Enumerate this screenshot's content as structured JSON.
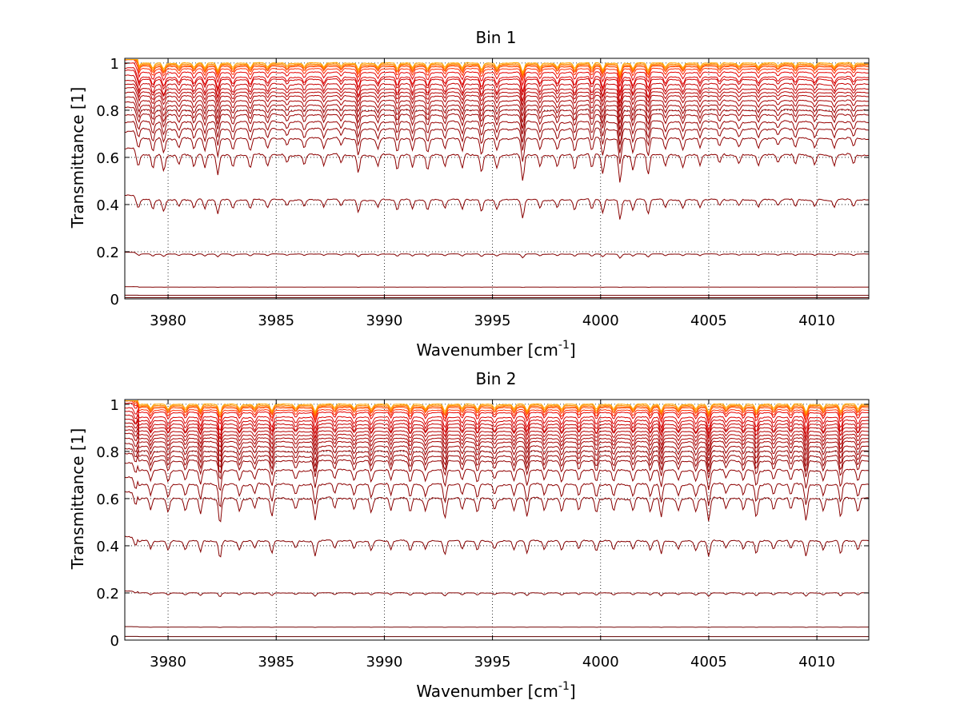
{
  "chart_data": [
    {
      "type": "line",
      "title": "Bin 1",
      "xlabel": "Wavenumber [cm",
      "xlabel_sup": "-1",
      "xlabel_end": "]",
      "ylabel": "Transmittance [1]",
      "xlim": [
        3978,
        4012.4
      ],
      "ylim": [
        0,
        1.02
      ],
      "xticks": [
        3980,
        3985,
        3990,
        3995,
        4000,
        4005,
        4010
      ],
      "xtick_labels": [
        "3980",
        "3985",
        "3990",
        "3995",
        "4000",
        "4005",
        "4010"
      ],
      "yticks": [
        0,
        0.2,
        0.4,
        0.6,
        0.8,
        1
      ],
      "ytick_labels": [
        "0",
        "0.2",
        "0.4",
        "0.6",
        "0.8",
        "1"
      ],
      "grid": true,
      "series_baselines": [
        1.0,
        0.995,
        0.99,
        0.985,
        0.975,
        0.96,
        0.94,
        0.93,
        0.91,
        0.89,
        0.875,
        0.86,
        0.84,
        0.82,
        0.8,
        0.78,
        0.75,
        0.72,
        0.68,
        0.61,
        0.42,
        0.19,
        0.05,
        0.015,
        0.005
      ],
      "series_colors": [
        "#ffa500",
        "#ff8c00",
        "#ff6a00",
        "#ff4500",
        "#ff2a00",
        "#e60000",
        "#dd0000",
        "#d00000",
        "#c80000",
        "#c00000",
        "#b80000",
        "#b00000",
        "#a80000",
        "#a40000",
        "#a00000",
        "#9c0000",
        "#980000",
        "#940000",
        "#900000",
        "#8c0000",
        "#880000",
        "#840000",
        "#800000",
        "#700000",
        "#600000"
      ],
      "absorption_lines": [
        {
          "x": 3978.6,
          "depth": 0.55
        },
        {
          "x": 3979.3,
          "depth": 0.5
        },
        {
          "x": 3979.8,
          "depth": 0.55
        },
        {
          "x": 3980.5,
          "depth": 0.35
        },
        {
          "x": 3981.2,
          "depth": 0.4
        },
        {
          "x": 3981.7,
          "depth": 0.5
        },
        {
          "x": 3982.3,
          "depth": 0.65
        },
        {
          "x": 3983.0,
          "depth": 0.4
        },
        {
          "x": 3983.8,
          "depth": 0.45
        },
        {
          "x": 3984.6,
          "depth": 0.4
        },
        {
          "x": 3985.5,
          "depth": 0.3
        },
        {
          "x": 3986.3,
          "depth": 0.35
        },
        {
          "x": 3987.2,
          "depth": 0.35
        },
        {
          "x": 3988.0,
          "depth": 0.3
        },
        {
          "x": 3988.8,
          "depth": 0.6
        },
        {
          "x": 3989.7,
          "depth": 0.35
        },
        {
          "x": 3990.6,
          "depth": 0.5
        },
        {
          "x": 3991.3,
          "depth": 0.45
        },
        {
          "x": 3992.0,
          "depth": 0.5
        },
        {
          "x": 3992.8,
          "depth": 0.4
        },
        {
          "x": 3993.6,
          "depth": 0.5
        },
        {
          "x": 3994.5,
          "depth": 0.6
        },
        {
          "x": 3995.2,
          "depth": 0.45
        },
        {
          "x": 3996.4,
          "depth": 0.9
        },
        {
          "x": 3997.2,
          "depth": 0.45
        },
        {
          "x": 3998.0,
          "depth": 0.4
        },
        {
          "x": 3998.8,
          "depth": 0.5
        },
        {
          "x": 3999.6,
          "depth": 0.5
        },
        {
          "x": 4000.1,
          "depth": 0.6
        },
        {
          "x": 4000.9,
          "depth": 0.95
        },
        {
          "x": 4001.5,
          "depth": 0.5
        },
        {
          "x": 4002.2,
          "depth": 0.7
        },
        {
          "x": 4003.0,
          "depth": 0.4
        },
        {
          "x": 4003.8,
          "depth": 0.4
        },
        {
          "x": 4004.6,
          "depth": 0.35
        },
        {
          "x": 4005.5,
          "depth": 0.3
        },
        {
          "x": 4006.4,
          "depth": 0.3
        },
        {
          "x": 4007.3,
          "depth": 0.35
        },
        {
          "x": 4008.2,
          "depth": 0.3
        },
        {
          "x": 4009.0,
          "depth": 0.35
        },
        {
          "x": 4009.9,
          "depth": 0.3
        },
        {
          "x": 4010.8,
          "depth": 0.35
        },
        {
          "x": 4011.7,
          "depth": 0.3
        }
      ]
    },
    {
      "type": "line",
      "title": "Bin 2",
      "xlabel": "Wavenumber [cm",
      "xlabel_sup": "-1",
      "xlabel_end": "]",
      "ylabel": "Transmittance [1]",
      "xlim": [
        3978,
        4012.4
      ],
      "ylim": [
        0,
        1.02
      ],
      "xticks": [
        3980,
        3985,
        3990,
        3995,
        4000,
        4005,
        4010
      ],
      "xtick_labels": [
        "3980",
        "3985",
        "3990",
        "3995",
        "4000",
        "4005",
        "4010"
      ],
      "yticks": [
        0,
        0.2,
        0.4,
        0.6,
        0.8,
        1
      ],
      "ytick_labels": [
        "0",
        "0.2",
        "0.4",
        "0.6",
        "0.8",
        "1"
      ],
      "grid": true,
      "series_baselines": [
        1.0,
        0.995,
        0.99,
        0.985,
        0.975,
        0.965,
        0.945,
        0.93,
        0.915,
        0.9,
        0.885,
        0.87,
        0.855,
        0.84,
        0.82,
        0.8,
        0.78,
        0.76,
        0.72,
        0.66,
        0.6,
        0.42,
        0.2,
        0.055,
        0.015
      ],
      "series_colors": [
        "#ffa500",
        "#ff8c00",
        "#ff6a00",
        "#ff4500",
        "#ff2a00",
        "#e60000",
        "#dd0000",
        "#d00000",
        "#c80000",
        "#c00000",
        "#b80000",
        "#b00000",
        "#a80000",
        "#a40000",
        "#a00000",
        "#9c0000",
        "#980000",
        "#940000",
        "#900000",
        "#8c0000",
        "#880000",
        "#840000",
        "#800000",
        "#700000",
        "#600000"
      ],
      "absorption_lines": [
        {
          "x": 3978.5,
          "depth": 0.45
        },
        {
          "x": 3979.2,
          "depth": 0.4
        },
        {
          "x": 3980.0,
          "depth": 0.45
        },
        {
          "x": 3980.8,
          "depth": 0.4
        },
        {
          "x": 3981.5,
          "depth": 0.55
        },
        {
          "x": 3982.4,
          "depth": 0.85
        },
        {
          "x": 3983.3,
          "depth": 0.4
        },
        {
          "x": 3984.0,
          "depth": 0.35
        },
        {
          "x": 3984.8,
          "depth": 0.6
        },
        {
          "x": 3985.9,
          "depth": 0.35
        },
        {
          "x": 3986.8,
          "depth": 0.7
        },
        {
          "x": 3987.7,
          "depth": 0.35
        },
        {
          "x": 3988.6,
          "depth": 0.4
        },
        {
          "x": 3989.4,
          "depth": 0.45
        },
        {
          "x": 3990.3,
          "depth": 0.4
        },
        {
          "x": 3991.2,
          "depth": 0.5
        },
        {
          "x": 3991.9,
          "depth": 0.4
        },
        {
          "x": 3992.8,
          "depth": 0.65
        },
        {
          "x": 3993.6,
          "depth": 0.4
        },
        {
          "x": 3994.3,
          "depth": 0.45
        },
        {
          "x": 3995.1,
          "depth": 0.35
        },
        {
          "x": 3996.0,
          "depth": 0.45
        },
        {
          "x": 3996.6,
          "depth": 0.6
        },
        {
          "x": 3997.4,
          "depth": 0.4
        },
        {
          "x": 3998.2,
          "depth": 0.45
        },
        {
          "x": 3999.0,
          "depth": 0.4
        },
        {
          "x": 3999.8,
          "depth": 0.5
        },
        {
          "x": 4000.6,
          "depth": 0.45
        },
        {
          "x": 4001.5,
          "depth": 0.4
        },
        {
          "x": 4002.3,
          "depth": 0.45
        },
        {
          "x": 4002.8,
          "depth": 0.65
        },
        {
          "x": 4003.6,
          "depth": 0.4
        },
        {
          "x": 4004.4,
          "depth": 0.45
        },
        {
          "x": 4005.0,
          "depth": 0.75
        },
        {
          "x": 4005.8,
          "depth": 0.35
        },
        {
          "x": 4006.6,
          "depth": 0.4
        },
        {
          "x": 4007.2,
          "depth": 0.6
        },
        {
          "x": 4008.0,
          "depth": 0.4
        },
        {
          "x": 4008.8,
          "depth": 0.4
        },
        {
          "x": 4009.5,
          "depth": 0.7
        },
        {
          "x": 4010.3,
          "depth": 0.4
        },
        {
          "x": 4011.1,
          "depth": 0.65
        },
        {
          "x": 4011.9,
          "depth": 0.45
        }
      ]
    }
  ]
}
